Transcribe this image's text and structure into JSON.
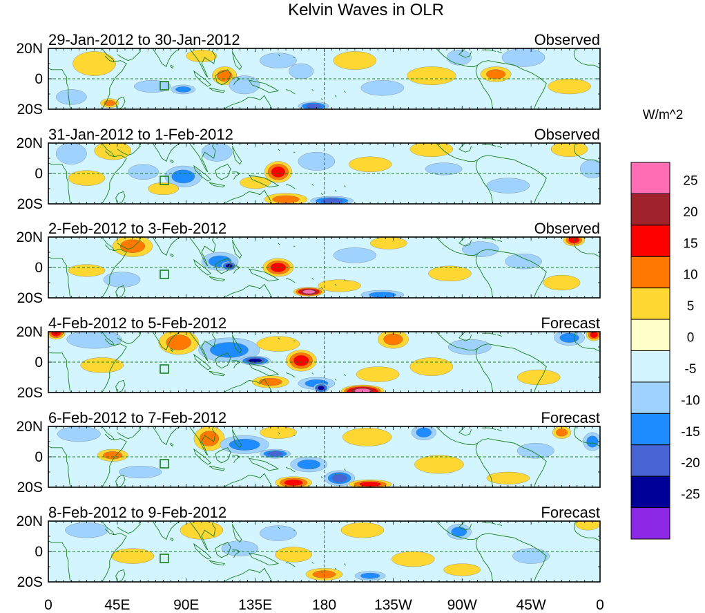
{
  "title": "Kelvin Waves in OLR",
  "units": "W/m^2",
  "panels": [
    {
      "period": "29-Jan-2012 to 30-Jan-2012",
      "status": "Observed"
    },
    {
      "period": "31-Jan-2012 to 1-Feb-2012",
      "status": "Observed"
    },
    {
      "period": "2-Feb-2012 to 3-Feb-2012",
      "status": "Observed"
    },
    {
      "period": "4-Feb-2012 to 5-Feb-2012",
      "status": "Forecast"
    },
    {
      "period": "6-Feb-2012 to 7-Feb-2012",
      "status": "Forecast"
    },
    {
      "period": "8-Feb-2012 to 9-Feb-2012",
      "status": "Forecast"
    }
  ],
  "lat_labels": [
    "20N",
    "0",
    "20S"
  ],
  "lon_labels": [
    "0",
    "45E",
    "90E",
    "135E",
    "180",
    "135W",
    "90W",
    "45W",
    "0"
  ],
  "colorbar": {
    "labels": [
      "25",
      "20",
      "15",
      "10",
      "5",
      "0",
      "-5",
      "-10",
      "-15",
      "-20",
      "-25"
    ],
    "colors": [
      "#ff6eb4",
      "#a0222a",
      "#ff0000",
      "#ff7800",
      "#ffd732",
      "#ffffc8",
      "#d2f5ff",
      "#a0d2ff",
      "#1e8cff",
      "#4664d2",
      "#000096",
      "#8c28e6"
    ]
  },
  "colors": {
    "coast": "#1a7f1a",
    "guide": "#1a7f1a"
  },
  "anomalies": [
    [
      {
        "lon": 30,
        "lat": 10,
        "rx": 14,
        "ry": 8,
        "v": 7
      },
      {
        "lon": 15,
        "lat": -12,
        "rx": 10,
        "ry": 5,
        "v": -7
      },
      {
        "lon": 40,
        "lat": -16,
        "rx": 6,
        "ry": 3,
        "v": 12
      },
      {
        "lon": 68,
        "lat": -5,
        "rx": 12,
        "ry": 4,
        "v": -8
      },
      {
        "lon": 88,
        "lat": -7,
        "rx": 8,
        "ry": 3,
        "v": -13
      },
      {
        "lon": 100,
        "lat": 15,
        "rx": 10,
        "ry": 4,
        "v": 6
      },
      {
        "lon": 115,
        "lat": 2,
        "rx": 8,
        "ry": 6,
        "v": 13
      },
      {
        "lon": 128,
        "lat": -4,
        "rx": 10,
        "ry": 6,
        "v": -9
      },
      {
        "lon": 150,
        "lat": 12,
        "rx": 12,
        "ry": 5,
        "v": -6
      },
      {
        "lon": 165,
        "lat": 5,
        "rx": 8,
        "ry": 5,
        "v": -7
      },
      {
        "lon": 173,
        "lat": -18,
        "rx": 10,
        "ry": 3,
        "v": -16
      },
      {
        "lon": 200,
        "lat": 12,
        "rx": 14,
        "ry": 6,
        "v": 6
      },
      {
        "lon": 218,
        "lat": -6,
        "rx": 14,
        "ry": 5,
        "v": -6
      },
      {
        "lon": 250,
        "lat": 2,
        "rx": 16,
        "ry": 6,
        "v": 6
      },
      {
        "lon": 268,
        "lat": 14,
        "rx": 8,
        "ry": 5,
        "v": -8
      },
      {
        "lon": 292,
        "lat": 3,
        "rx": 10,
        "ry": 5,
        "v": 13
      },
      {
        "lon": 310,
        "lat": 14,
        "rx": 14,
        "ry": 6,
        "v": -8
      },
      {
        "lon": 340,
        "lat": -5,
        "rx": 14,
        "ry": 5,
        "v": 6
      }
    ],
    [
      {
        "lon": 15,
        "lat": 13,
        "rx": 10,
        "ry": 7,
        "v": -9
      },
      {
        "lon": 25,
        "lat": -3,
        "rx": 12,
        "ry": 5,
        "v": 6
      },
      {
        "lon": 42,
        "lat": 15,
        "rx": 12,
        "ry": 6,
        "v": 7
      },
      {
        "lon": 62,
        "lat": 1,
        "rx": 10,
        "ry": 5,
        "v": -9
      },
      {
        "lon": 88,
        "lat": -2,
        "rx": 12,
        "ry": 7,
        "v": -13
      },
      {
        "lon": 75,
        "lat": -10,
        "rx": 10,
        "ry": 4,
        "v": 6
      },
      {
        "lon": 110,
        "lat": 14,
        "rx": 10,
        "ry": 6,
        "v": -7
      },
      {
        "lon": 150,
        "lat": 1,
        "rx": 9,
        "ry": 7,
        "v": 18
      },
      {
        "lon": 135,
        "lat": -6,
        "rx": 10,
        "ry": 4,
        "v": 6
      },
      {
        "lon": 155,
        "lat": -17,
        "rx": 14,
        "ry": 4,
        "v": 13
      },
      {
        "lon": 185,
        "lat": -18,
        "rx": 14,
        "ry": 3,
        "v": -18
      },
      {
        "lon": 175,
        "lat": 8,
        "rx": 12,
        "ry": 6,
        "v": -6
      },
      {
        "lon": 210,
        "lat": 6,
        "rx": 14,
        "ry": 5,
        "v": 6
      },
      {
        "lon": 250,
        "lat": 16,
        "rx": 14,
        "ry": 5,
        "v": 6
      },
      {
        "lon": 258,
        "lat": 3,
        "rx": 12,
        "ry": 4,
        "v": -6
      },
      {
        "lon": 300,
        "lat": -8,
        "rx": 14,
        "ry": 5,
        "v": -6
      },
      {
        "lon": 340,
        "lat": 16,
        "rx": 12,
        "ry": 5,
        "v": 6
      },
      {
        "lon": 355,
        "lat": 3,
        "rx": 8,
        "ry": 6,
        "v": -9
      }
    ],
    [
      {
        "lon": 55,
        "lat": 14,
        "rx": 13,
        "ry": 7,
        "v": 13
      },
      {
        "lon": 48,
        "lat": -8,
        "rx": 12,
        "ry": 5,
        "v": -7
      },
      {
        "lon": 25,
        "lat": -2,
        "rx": 12,
        "ry": 4,
        "v": 6
      },
      {
        "lon": 112,
        "lat": 4,
        "rx": 12,
        "ry": 6,
        "v": -14
      },
      {
        "lon": 118,
        "lat": 1,
        "rx": 5,
        "ry": 3,
        "v": -22
      },
      {
        "lon": 150,
        "lat": 0,
        "rx": 10,
        "ry": 6,
        "v": 17
      },
      {
        "lon": 170,
        "lat": -16,
        "rx": 10,
        "ry": 3,
        "v": 27
      },
      {
        "lon": 190,
        "lat": -12,
        "rx": 14,
        "ry": 4,
        "v": 7
      },
      {
        "lon": 218,
        "lat": -18,
        "rx": 14,
        "ry": 3,
        "v": -13
      },
      {
        "lon": 200,
        "lat": 8,
        "rx": 14,
        "ry": 5,
        "v": -6
      },
      {
        "lon": 222,
        "lat": 16,
        "rx": 12,
        "ry": 4,
        "v": 6
      },
      {
        "lon": 262,
        "lat": -4,
        "rx": 14,
        "ry": 5,
        "v": 6
      },
      {
        "lon": 282,
        "lat": 12,
        "rx": 12,
        "ry": 5,
        "v": -7
      },
      {
        "lon": 310,
        "lat": 4,
        "rx": 12,
        "ry": 5,
        "v": -6
      },
      {
        "lon": 343,
        "lat": 18,
        "rx": 7,
        "ry": 4,
        "v": 17
      },
      {
        "lon": 335,
        "lat": -10,
        "rx": 12,
        "ry": 5,
        "v": 6
      }
    ],
    [
      {
        "lon": 5,
        "lat": 19,
        "rx": 6,
        "ry": 4,
        "v": 17
      },
      {
        "lon": 30,
        "lat": 15,
        "rx": 18,
        "ry": 6,
        "v": -8
      },
      {
        "lon": 35,
        "lat": -2,
        "rx": 14,
        "ry": 5,
        "v": 6
      },
      {
        "lon": 85,
        "lat": 13,
        "rx": 13,
        "ry": 8,
        "v": 13
      },
      {
        "lon": 118,
        "lat": 8,
        "rx": 20,
        "ry": 8,
        "v": -11
      },
      {
        "lon": 135,
        "lat": 1,
        "rx": 10,
        "ry": 3,
        "v": -22
      },
      {
        "lon": 150,
        "lat": 12,
        "rx": 14,
        "ry": 5,
        "v": 8
      },
      {
        "lon": 165,
        "lat": 1,
        "rx": 10,
        "ry": 7,
        "v": 17
      },
      {
        "lon": 175,
        "lat": -14,
        "rx": 12,
        "ry": 4,
        "v": -12
      },
      {
        "lon": 178,
        "lat": -17,
        "rx": 5,
        "ry": 3,
        "v": -22
      },
      {
        "lon": 205,
        "lat": -19,
        "rx": 14,
        "ry": 4,
        "v": 27
      },
      {
        "lon": 145,
        "lat": -13,
        "rx": 12,
        "ry": 4,
        "v": 13
      },
      {
        "lon": 225,
        "lat": 15,
        "rx": 10,
        "ry": 6,
        "v": 13
      },
      {
        "lon": 215,
        "lat": -8,
        "rx": 14,
        "ry": 5,
        "v": 6
      },
      {
        "lon": 250,
        "lat": -3,
        "rx": 14,
        "ry": 6,
        "v": 7
      },
      {
        "lon": 275,
        "lat": 10,
        "rx": 14,
        "ry": 5,
        "v": -6
      },
      {
        "lon": 340,
        "lat": 16,
        "rx": 10,
        "ry": 5,
        "v": -12
      },
      {
        "lon": 356,
        "lat": 18,
        "rx": 5,
        "ry": 4,
        "v": 17
      },
      {
        "lon": 320,
        "lat": -10,
        "rx": 14,
        "ry": 5,
        "v": 6
      }
    ],
    [
      {
        "lon": 20,
        "lat": 15,
        "rx": 14,
        "ry": 5,
        "v": -7
      },
      {
        "lon": 42,
        "lat": 1,
        "rx": 10,
        "ry": 4,
        "v": 13
      },
      {
        "lon": 60,
        "lat": -10,
        "rx": 14,
        "ry": 4,
        "v": -7
      },
      {
        "lon": 105,
        "lat": 12,
        "rx": 10,
        "ry": 8,
        "v": 13
      },
      {
        "lon": 128,
        "lat": 8,
        "rx": 16,
        "ry": 6,
        "v": -12
      },
      {
        "lon": 148,
        "lat": 2,
        "rx": 10,
        "ry": 3,
        "v": -18
      },
      {
        "lon": 150,
        "lat": 16,
        "rx": 12,
        "ry": 4,
        "v": 7
      },
      {
        "lon": 170,
        "lat": -5,
        "rx": 12,
        "ry": 5,
        "v": -13
      },
      {
        "lon": 190,
        "lat": -14,
        "rx": 10,
        "ry": 5,
        "v": -16
      },
      {
        "lon": 160,
        "lat": -17,
        "rx": 12,
        "ry": 4,
        "v": 17
      },
      {
        "lon": 210,
        "lat": -18,
        "rx": 14,
        "ry": 3,
        "v": 17
      },
      {
        "lon": 208,
        "lat": 13,
        "rx": 16,
        "ry": 6,
        "v": 7
      },
      {
        "lon": 245,
        "lat": 16,
        "rx": 8,
        "ry": 5,
        "v": -10
      },
      {
        "lon": 255,
        "lat": -5,
        "rx": 16,
        "ry": 6,
        "v": 7
      },
      {
        "lon": 300,
        "lat": -14,
        "rx": 14,
        "ry": 4,
        "v": 6
      },
      {
        "lon": 335,
        "lat": 16,
        "rx": 6,
        "ry": 4,
        "v": 13
      },
      {
        "lon": 355,
        "lat": 10,
        "rx": 6,
        "ry": 6,
        "v": -12
      },
      {
        "lon": 318,
        "lat": 4,
        "rx": 12,
        "ry": 5,
        "v": -6
      }
    ],
    [
      {
        "lon": 25,
        "lat": 14,
        "rx": 14,
        "ry": 5,
        "v": -7
      },
      {
        "lon": 55,
        "lat": -3,
        "rx": 14,
        "ry": 5,
        "v": 6
      },
      {
        "lon": 100,
        "lat": 14,
        "rx": 14,
        "ry": 6,
        "v": 7
      },
      {
        "lon": 125,
        "lat": 2,
        "rx": 12,
        "ry": 5,
        "v": -8
      },
      {
        "lon": 150,
        "lat": 12,
        "rx": 12,
        "ry": 5,
        "v": -7
      },
      {
        "lon": 160,
        "lat": -2,
        "rx": 12,
        "ry": 5,
        "v": 7
      },
      {
        "lon": 180,
        "lat": -15,
        "rx": 12,
        "ry": 4,
        "v": 14
      },
      {
        "lon": 210,
        "lat": -16,
        "rx": 10,
        "ry": 3,
        "v": -12
      },
      {
        "lon": 205,
        "lat": 14,
        "rx": 14,
        "ry": 5,
        "v": 7
      },
      {
        "lon": 238,
        "lat": -5,
        "rx": 14,
        "ry": 5,
        "v": 7
      },
      {
        "lon": 268,
        "lat": 13,
        "rx": 8,
        "ry": 5,
        "v": -11
      },
      {
        "lon": 270,
        "lat": -12,
        "rx": 12,
        "ry": 4,
        "v": 6
      },
      {
        "lon": 315,
        "lat": -3,
        "rx": 12,
        "ry": 5,
        "v": -6
      },
      {
        "lon": 352,
        "lat": 18,
        "rx": 8,
        "ry": 4,
        "v": 8
      }
    ]
  ]
}
